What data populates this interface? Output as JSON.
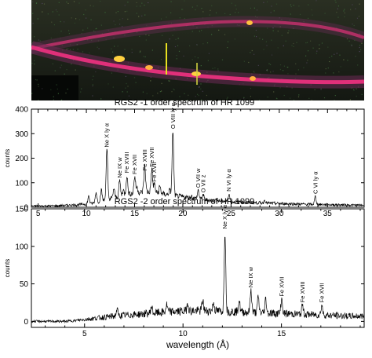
{
  "figure": {
    "detector_image": {
      "description_icon": "ccd-detector-image",
      "colors": {
        "background": "#1a1f16",
        "trace": "#e0307a",
        "hot": "#ffd040",
        "noise": "#3c6a3a"
      }
    },
    "xlabel": "wavelength (Å)"
  },
  "chart_data": [
    {
      "type": "line",
      "title": "RGS2 -1 order spectrum of HR 1099",
      "ylabel": "counts",
      "xlabel": "",
      "xlim": [
        4.3,
        38.8
      ],
      "ylim": [
        0,
        400
      ],
      "xticks": [
        5,
        10,
        15,
        20,
        25,
        30,
        35
      ],
      "yticks": [
        0,
        100,
        200,
        300,
        400
      ],
      "baseline": [
        [
          4.5,
          5
        ],
        [
          7,
          6
        ],
        [
          9,
          10
        ],
        [
          10.5,
          15
        ],
        [
          11.5,
          25
        ],
        [
          12.5,
          35
        ],
        [
          13.5,
          45
        ],
        [
          14.5,
          55
        ],
        [
          15.5,
          60
        ],
        [
          16.5,
          62
        ],
        [
          17.5,
          58
        ],
        [
          18.5,
          50
        ],
        [
          19.5,
          45
        ],
        [
          20.5,
          40
        ],
        [
          21.5,
          35
        ],
        [
          22.5,
          30
        ],
        [
          24,
          25
        ],
        [
          26,
          20
        ],
        [
          28,
          18
        ],
        [
          30,
          15
        ],
        [
          33,
          12
        ],
        [
          36,
          10
        ],
        [
          38.5,
          8
        ]
      ],
      "lines": [
        {
          "x": 12.13,
          "y": 235,
          "label": "Ne X ly α"
        },
        {
          "x": 13.45,
          "y": 110,
          "label": "Ne IX w"
        },
        {
          "x": 14.2,
          "y": 130,
          "label": "Fe XVIII"
        },
        {
          "x": 15.01,
          "y": 125,
          "label": "Fe XVII"
        },
        {
          "x": 16.78,
          "y": 155,
          "label": "Fe XVII"
        },
        {
          "x": 16.07,
          "y": 140,
          "label": "Fe XVIII"
        },
        {
          "x": 17.05,
          "y": 95,
          "label": "Fe XVII"
        },
        {
          "x": 18.97,
          "y": 310,
          "label": "O VIII ly α"
        },
        {
          "x": 21.6,
          "y": 70,
          "label": "O VII w"
        },
        {
          "x": 22.1,
          "y": 50,
          "label": "O VII z"
        },
        {
          "x": 24.78,
          "y": 55,
          "label": "N VI ly α"
        },
        {
          "x": 33.74,
          "y": 45,
          "label": "C VI ly α"
        },
        {
          "x": 10.24,
          "y": 45,
          "label": ""
        },
        {
          "x": 11.0,
          "y": 60,
          "label": ""
        },
        {
          "x": 11.55,
          "y": 70,
          "label": ""
        },
        {
          "x": 12.85,
          "y": 75,
          "label": ""
        },
        {
          "x": 13.82,
          "y": 70,
          "label": ""
        },
        {
          "x": 15.26,
          "y": 80,
          "label": ""
        },
        {
          "x": 16.0,
          "y": 95,
          "label": ""
        },
        {
          "x": 17.62,
          "y": 85,
          "label": ""
        },
        {
          "x": 18.63,
          "y": 70,
          "label": ""
        },
        {
          "x": 20.9,
          "y": 45,
          "label": ""
        },
        {
          "x": 23.5,
          "y": 30,
          "label": ""
        },
        {
          "x": 26.0,
          "y": 25,
          "label": ""
        },
        {
          "x": 28.5,
          "y": 30,
          "label": ""
        }
      ]
    },
    {
      "type": "line",
      "title": "RGS2 -2 order spectrum of HR 1099",
      "ylabel": "counts",
      "xlabel": "wavelength (Å)",
      "xlim": [
        2.3,
        19.2
      ],
      "ylim": [
        -8,
        150
      ],
      "xticks": [
        5,
        10,
        15
      ],
      "yticks": [
        0,
        50,
        100,
        150
      ],
      "baseline": [
        [
          2.5,
          0
        ],
        [
          4,
          0
        ],
        [
          4.5,
          1
        ],
        [
          5.5,
          4
        ],
        [
          6.5,
          7
        ],
        [
          7.5,
          9
        ],
        [
          8.5,
          11
        ],
        [
          9.5,
          13
        ],
        [
          10.5,
          14
        ],
        [
          11.5,
          14
        ],
        [
          12.5,
          13
        ],
        [
          13.5,
          12
        ],
        [
          14.5,
          11
        ],
        [
          15.5,
          10
        ],
        [
          16.5,
          9
        ],
        [
          17.5,
          8
        ],
        [
          18.5,
          7
        ],
        [
          19.1,
          7
        ]
      ],
      "lines": [
        {
          "x": 12.13,
          "y": 120,
          "label": "Ne X ly α"
        },
        {
          "x": 13.45,
          "y": 42,
          "label": "Ne IX w"
        },
        {
          "x": 15.01,
          "y": 30,
          "label": "Fe XVII"
        },
        {
          "x": 16.07,
          "y": 22,
          "label": "Fe XVIII"
        },
        {
          "x": 17.05,
          "y": 22,
          "label": "Fe XVII"
        },
        {
          "x": 10.24,
          "y": 25,
          "label": ""
        },
        {
          "x": 11.0,
          "y": 28,
          "label": ""
        },
        {
          "x": 12.85,
          "y": 28,
          "label": ""
        },
        {
          "x": 13.82,
          "y": 32,
          "label": ""
        },
        {
          "x": 14.2,
          "y": 30,
          "label": ""
        },
        {
          "x": 11.55,
          "y": 25,
          "label": ""
        },
        {
          "x": 9.17,
          "y": 22,
          "label": ""
        },
        {
          "x": 8.4,
          "y": 20,
          "label": ""
        },
        {
          "x": 6.65,
          "y": 16,
          "label": ""
        }
      ]
    }
  ]
}
